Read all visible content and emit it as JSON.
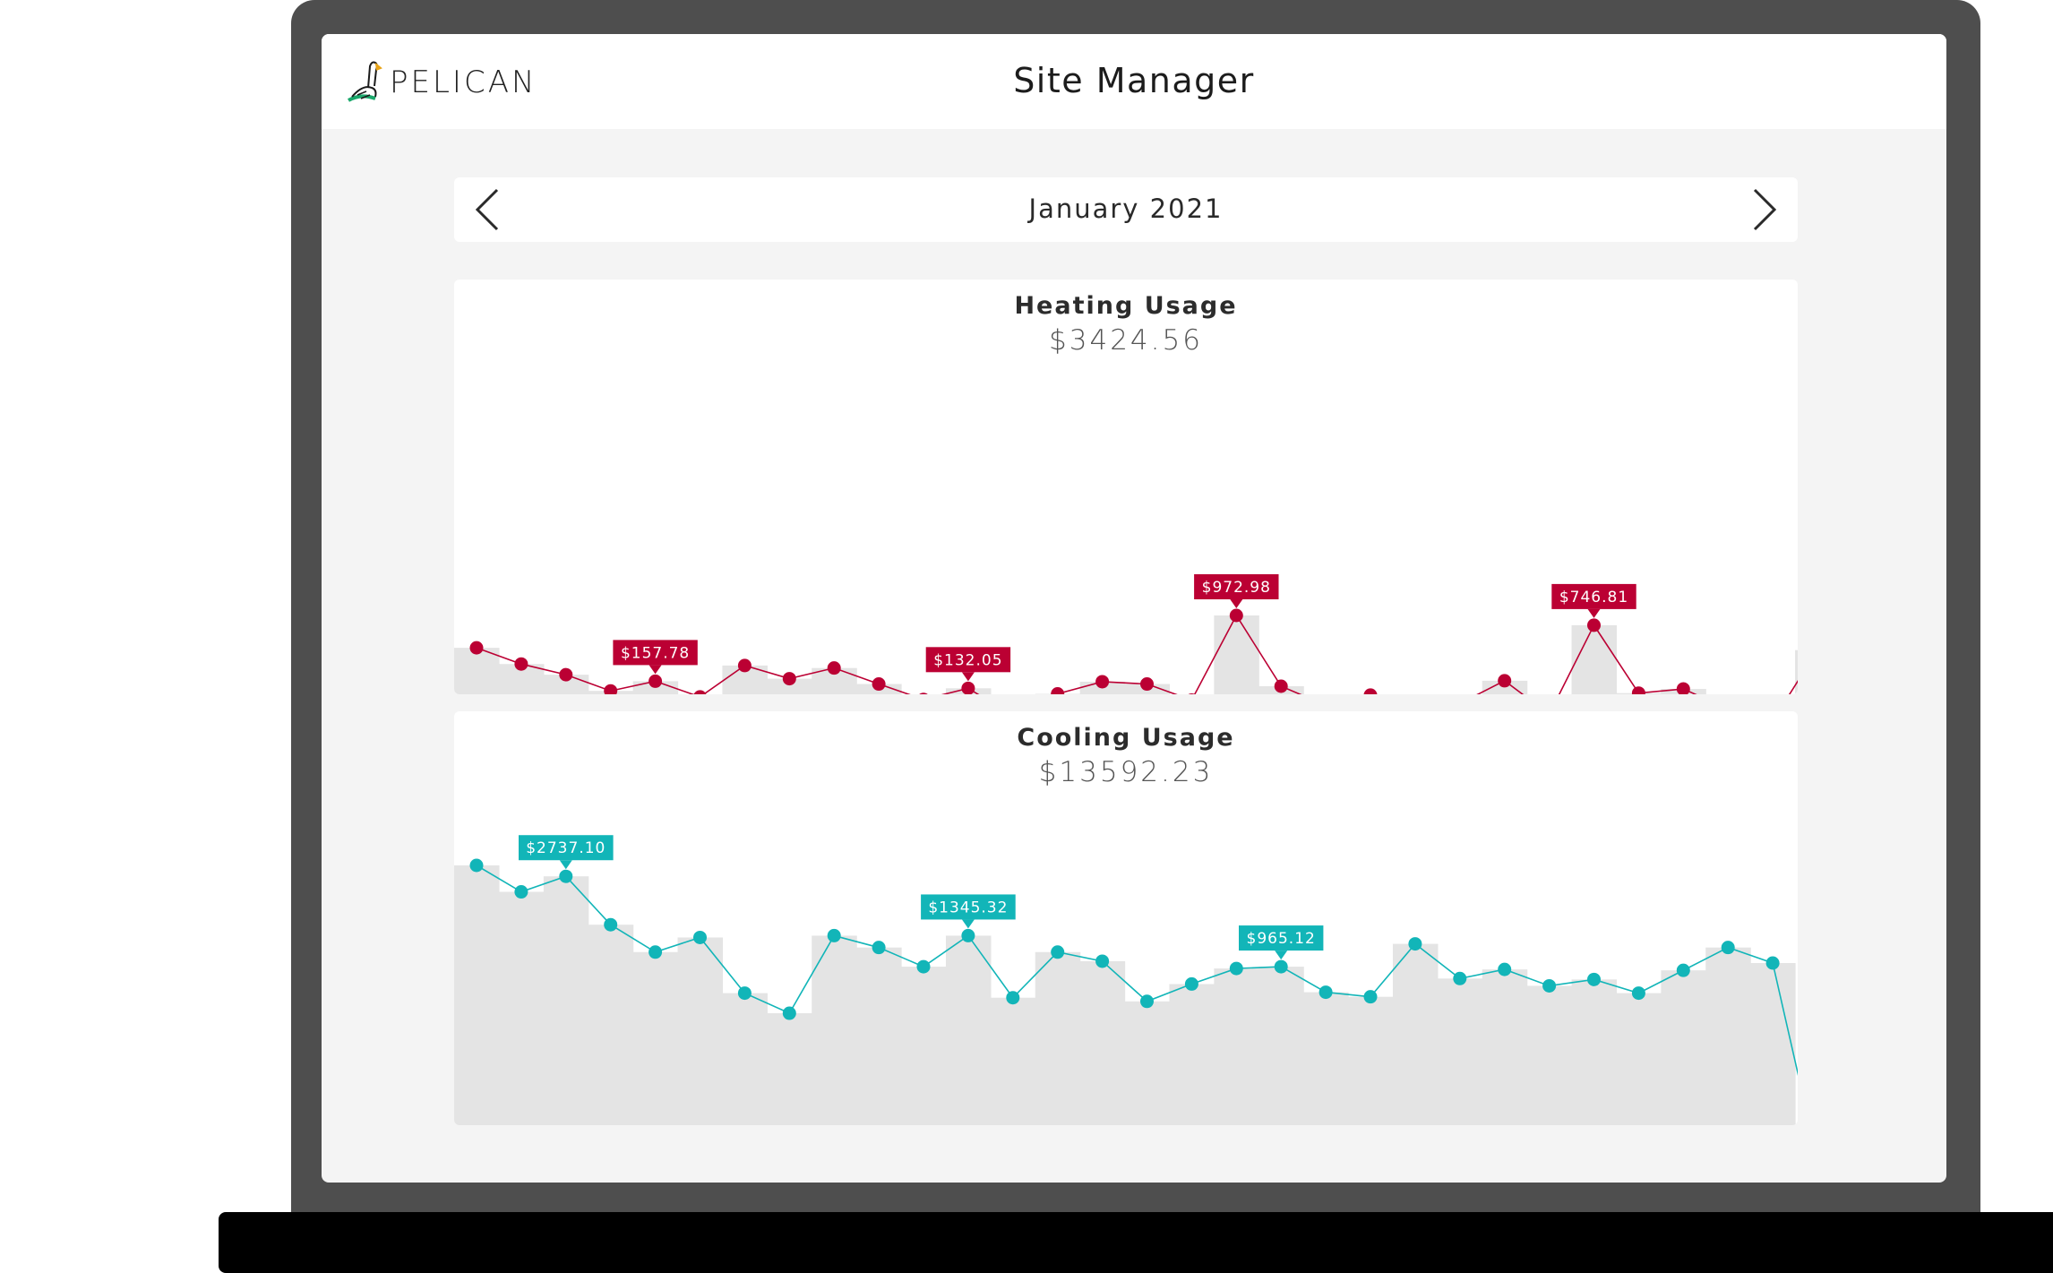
{
  "app": {
    "brand": "PELICAN",
    "title": "Site Manager"
  },
  "nav": {
    "month": "January 2021",
    "prev_icon": "chevron-left-icon",
    "next_icon": "chevron-right-icon"
  },
  "colors": {
    "heating": "#bb0033",
    "cooling": "#12b5b8",
    "bar_fill": "#e4e4e4"
  },
  "heating": {
    "title": "Heating Usage",
    "total": "$3424.56",
    "chart_data": {
      "type": "line",
      "x": [
        1,
        2,
        3,
        4,
        5,
        6,
        7,
        8,
        9,
        10,
        11,
        12,
        13,
        14,
        15,
        16,
        17,
        18,
        19,
        20,
        21,
        22,
        23,
        24,
        25,
        26,
        27,
        28,
        29,
        30,
        31
      ],
      "values": [
        122.3,
        97.4,
        81.0,
        56.1,
        71.0,
        46.9,
        95.1,
        74.9,
        91.3,
        66.7,
        43.0,
        60.1,
        18.2,
        51.6,
        70.2,
        66.7,
        42.0,
        172.0,
        63.3,
        34.1,
        49.7,
        24.9,
        36.8,
        71.7,
        20.3,
        157.0,
        52.7,
        59.1,
        28.5,
        10.0,
        118.8
      ],
      "annotations": [
        {
          "index": 4,
          "label": "$157.78"
        },
        {
          "index": 11,
          "label": "$132.05"
        },
        {
          "index": 17,
          "label": "$972.98"
        },
        {
          "index": 25,
          "label": "$746.81"
        }
      ]
    }
  },
  "cooling": {
    "title": "Cooling Usage",
    "total": "$13592.23",
    "chart_data": {
      "type": "line",
      "x": [
        1,
        2,
        3,
        4,
        5,
        6,
        7,
        8,
        9,
        10,
        11,
        12,
        13,
        14,
        15,
        16,
        17,
        18,
        19,
        20,
        21,
        22,
        23,
        24,
        25,
        26,
        27,
        28,
        29,
        30,
        31
      ],
      "values": [
        322,
        293,
        310,
        257,
        227,
        243,
        182,
        160,
        245,
        232,
        211,
        245,
        177,
        227,
        217,
        173,
        192,
        209,
        211,
        183,
        178,
        236,
        198,
        208,
        190,
        197,
        182,
        207,
        232,
        215,
        0
      ],
      "annotations": [
        {
          "index": 2,
          "label": "$2737.10"
        },
        {
          "index": 11,
          "label": "$1345.32"
        },
        {
          "index": 18,
          "label": "$965.12"
        }
      ]
    }
  }
}
